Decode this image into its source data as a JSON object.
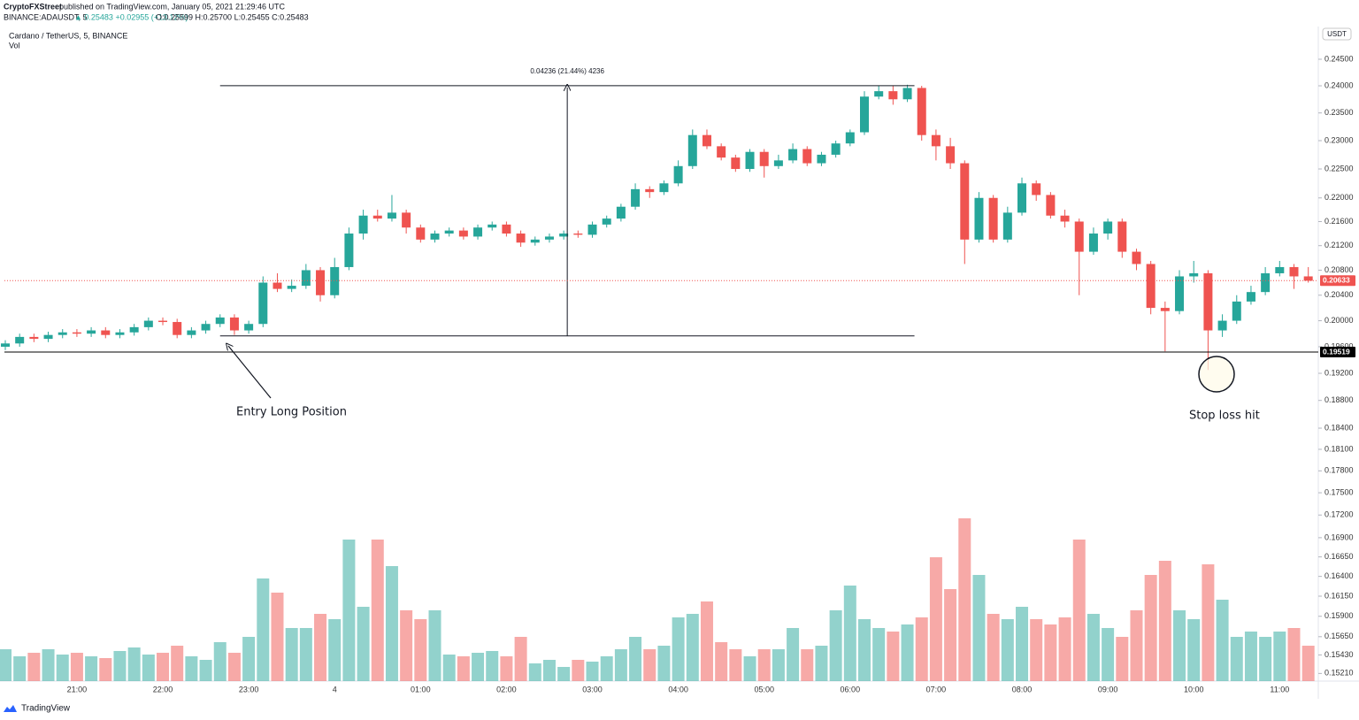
{
  "header": {
    "publisher": "CryptoFXStreet",
    "published": "published on TradingView.com, January 05, 2021 21:29:46 UTC",
    "symbol": "BINANCE:ADAUSDT, 5",
    "last": "▲ 0.25483 +0.02955 (+13.12%)",
    "ohlc": "O:0.25599 H:0.25700 L:0.25455 C:0.25483"
  },
  "footer": {
    "brand": "TradingView"
  },
  "chart_data": {
    "type": "candlestick",
    "title": "Cardano / TetherUS, 5, BINANCE",
    "subtitle": "Vol",
    "y_axis_unit": "USDT",
    "log": true,
    "grid": false,
    "up_color": "#26a69a",
    "down_color": "#ef5350",
    "ylim": [
      0.1512,
      0.2513
    ],
    "yticks": [
      {
        "value": 0.245,
        "label": "0.24500"
      },
      {
        "value": 0.24,
        "label": "0.24000"
      },
      {
        "value": 0.235,
        "label": "0.23500"
      },
      {
        "value": 0.23,
        "label": "0.23000"
      },
      {
        "value": 0.225,
        "label": "0.22500"
      },
      {
        "value": 0.22,
        "label": "0.22000"
      },
      {
        "value": 0.216,
        "label": "0.21600"
      },
      {
        "value": 0.212,
        "label": "0.21200"
      },
      {
        "value": 0.208,
        "label": "0.20800"
      },
      {
        "value": 0.204,
        "label": "0.20400"
      },
      {
        "value": 0.2,
        "label": "0.20000"
      },
      {
        "value": 0.196,
        "label": "0.19600"
      },
      {
        "value": 0.192,
        "label": "0.19200"
      },
      {
        "value": 0.188,
        "label": "0.18800"
      },
      {
        "value": 0.184,
        "label": "0.18400"
      },
      {
        "value": 0.181,
        "label": "0.18100"
      },
      {
        "value": 0.178,
        "label": "0.17800"
      },
      {
        "value": 0.175,
        "label": "0.17500"
      },
      {
        "value": 0.172,
        "label": "0.17200"
      },
      {
        "value": 0.169,
        "label": "0.16900"
      },
      {
        "value": 0.1665,
        "label": "0.16650"
      },
      {
        "value": 0.164,
        "label": "0.16400"
      },
      {
        "value": 0.1615,
        "label": "0.16150"
      },
      {
        "value": 0.159,
        "label": "0.15900"
      },
      {
        "value": 0.1565,
        "label": "0.15650"
      },
      {
        "value": 0.1543,
        "label": "0.15430"
      },
      {
        "value": 0.1521,
        "label": "0.15210"
      }
    ],
    "vlim": [
      0,
      100
    ],
    "categories": [
      null,
      null,
      null,
      null,
      null,
      "21:00",
      null,
      null,
      null,
      null,
      null,
      "22:00",
      null,
      null,
      null,
      null,
      null,
      "23:00",
      null,
      null,
      null,
      null,
      null,
      "4",
      null,
      null,
      null,
      null,
      null,
      "01:00",
      null,
      null,
      null,
      null,
      null,
      "02:00",
      null,
      null,
      null,
      null,
      null,
      "03:00",
      null,
      null,
      null,
      null,
      null,
      "04:00",
      null,
      null,
      null,
      null,
      null,
      "05:00",
      null,
      null,
      null,
      null,
      null,
      "06:00",
      null,
      null,
      null,
      null,
      null,
      "07:00",
      null,
      null,
      null,
      null,
      null,
      "08:00",
      null,
      null,
      null,
      null,
      null,
      "09:00",
      null,
      null,
      null,
      null,
      null,
      "10:00",
      null,
      null,
      null,
      null,
      null,
      "11:00",
      null,
      null
    ],
    "open": [
      0.196,
      0.1965,
      0.1975,
      0.1972,
      0.1978,
      0.1982,
      0.198,
      0.1985,
      0.1978,
      0.1982,
      0.199,
      0.2,
      0.1998,
      0.1978,
      0.1985,
      0.1995,
      0.2005,
      0.1985,
      0.1995,
      0.206,
      0.205,
      0.2055,
      0.208,
      0.204,
      0.2085,
      0.214,
      0.217,
      0.2165,
      0.2175,
      0.215,
      0.213,
      0.214,
      0.2145,
      0.2135,
      0.215,
      0.2155,
      0.214,
      0.2125,
      0.213,
      0.2135,
      0.214,
      0.2138,
      0.2155,
      0.2165,
      0.2185,
      0.2215,
      0.221,
      0.2225,
      0.2255,
      0.231,
      0.229,
      0.227,
      0.225,
      0.228,
      0.2255,
      0.2265,
      0.2285,
      0.226,
      0.2275,
      0.2295,
      0.2315,
      0.238,
      0.239,
      0.2375,
      0.2396,
      0.231,
      0.229,
      0.226,
      0.213,
      0.22,
      0.213,
      0.2175,
      0.2225,
      0.2205,
      0.217,
      0.216,
      0.211,
      0.214,
      0.216,
      0.211,
      0.209,
      0.202,
      0.2015,
      0.207,
      0.2075,
      0.1985,
      0.2,
      0.203,
      0.2045,
      0.2075,
      0.2085,
      0.207
    ],
    "high": [
      0.197,
      0.198,
      0.198,
      0.1983,
      0.1987,
      0.1987,
      0.199,
      0.199,
      0.1987,
      0.1995,
      0.2005,
      0.2005,
      0.2003,
      0.199,
      0.2,
      0.201,
      0.201,
      0.2,
      0.207,
      0.2075,
      0.2065,
      0.209,
      0.2085,
      0.21,
      0.215,
      0.218,
      0.218,
      0.2205,
      0.218,
      0.2155,
      0.2145,
      0.215,
      0.215,
      0.2155,
      0.216,
      0.216,
      0.2145,
      0.2135,
      0.214,
      0.2145,
      0.2145,
      0.216,
      0.217,
      0.219,
      0.2225,
      0.222,
      0.223,
      0.2265,
      0.232,
      0.232,
      0.2295,
      0.2275,
      0.2285,
      0.2285,
      0.2275,
      0.2295,
      0.229,
      0.228,
      0.23,
      0.232,
      0.239,
      0.24,
      0.24,
      0.2402,
      0.24,
      0.232,
      0.2305,
      0.2265,
      0.221,
      0.2205,
      0.2185,
      0.2235,
      0.223,
      0.221,
      0.218,
      0.2165,
      0.215,
      0.2165,
      0.2165,
      0.2115,
      0.2095,
      0.203,
      0.208,
      0.2095,
      0.208,
      0.201,
      0.204,
      0.2055,
      0.2085,
      0.2095,
      0.209,
      0.2085
    ],
    "low": [
      0.1955,
      0.196,
      0.1967,
      0.1967,
      0.1973,
      0.1975,
      0.1975,
      0.1973,
      0.1973,
      0.1977,
      0.1985,
      0.1993,
      0.1973,
      0.1973,
      0.198,
      0.199,
      0.1978,
      0.198,
      0.199,
      0.2045,
      0.2045,
      0.205,
      0.203,
      0.2035,
      0.208,
      0.213,
      0.216,
      0.216,
      0.214,
      0.2125,
      0.2125,
      0.2135,
      0.213,
      0.213,
      0.2145,
      0.2135,
      0.2118,
      0.212,
      0.2125,
      0.213,
      0.2133,
      0.2133,
      0.215,
      0.216,
      0.218,
      0.22,
      0.2205,
      0.222,
      0.225,
      0.2285,
      0.2265,
      0.2245,
      0.2245,
      0.2235,
      0.225,
      0.226,
      0.2255,
      0.2255,
      0.227,
      0.229,
      0.231,
      0.2375,
      0.2365,
      0.237,
      0.23,
      0.2265,
      0.225,
      0.209,
      0.2125,
      0.2125,
      0.2125,
      0.217,
      0.2195,
      0.2165,
      0.215,
      0.204,
      0.2105,
      0.213,
      0.21,
      0.208,
      0.201,
      0.1953,
      0.201,
      0.206,
      0.1925,
      0.1975,
      0.1995,
      0.2025,
      0.204,
      0.207,
      0.205,
      0.206
    ],
    "close": [
      0.1965,
      0.1975,
      0.1972,
      0.1978,
      0.1982,
      0.198,
      0.1985,
      0.1978,
      0.1982,
      0.199,
      0.2,
      0.1998,
      0.1978,
      0.1985,
      0.1995,
      0.2005,
      0.1985,
      0.1995,
      0.206,
      0.205,
      0.2055,
      0.208,
      0.204,
      0.2085,
      0.214,
      0.217,
      0.2165,
      0.2175,
      0.215,
      0.213,
      0.214,
      0.2145,
      0.2135,
      0.215,
      0.2155,
      0.214,
      0.2125,
      0.213,
      0.2135,
      0.214,
      0.2138,
      0.2155,
      0.2165,
      0.2185,
      0.2215,
      0.221,
      0.2225,
      0.2255,
      0.231,
      0.229,
      0.227,
      0.225,
      0.228,
      0.2255,
      0.2265,
      0.2285,
      0.226,
      0.2275,
      0.2295,
      0.2315,
      0.238,
      0.239,
      0.2375,
      0.2396,
      0.231,
      0.229,
      0.226,
      0.213,
      0.22,
      0.213,
      0.2175,
      0.2225,
      0.2205,
      0.217,
      0.216,
      0.211,
      0.214,
      0.216,
      0.211,
      0.209,
      0.202,
      0.2015,
      0.207,
      0.2075,
      0.1985,
      0.2,
      0.203,
      0.2045,
      0.2075,
      0.2085,
      0.207,
      0.2063
    ],
    "volume": [
      18,
      14,
      16,
      18,
      15,
      16,
      14,
      13,
      17,
      19,
      15,
      16,
      20,
      14,
      12,
      22,
      16,
      25,
      58,
      50,
      30,
      30,
      38,
      35,
      80,
      42,
      80,
      65,
      40,
      35,
      40,
      15,
      14,
      16,
      17,
      14,
      25,
      10,
      12,
      8,
      12,
      11,
      14,
      18,
      25,
      18,
      20,
      36,
      38,
      45,
      22,
      18,
      14,
      18,
      18,
      30,
      18,
      20,
      40,
      54,
      35,
      30,
      28,
      32,
      36,
      70,
      52,
      92,
      60,
      38,
      35,
      42,
      35,
      32,
      36,
      80,
      38,
      30,
      25,
      40,
      60,
      68,
      40,
      35,
      66,
      46,
      25,
      28,
      25,
      28,
      30,
      20
    ],
    "price_lines": [
      {
        "value": 0.19519,
        "color": "#000000"
      },
      {
        "value": 0.20633,
        "color": "#ef5350"
      }
    ],
    "measure": {
      "label": "0.04236 (21.44%) 4236",
      "low": 0.19766,
      "high": 0.24002,
      "start": 15,
      "end": 63
    },
    "annotations": [
      {
        "text": "Entry Long Position"
      },
      {
        "text": "Stop loss hit"
      }
    ]
  }
}
